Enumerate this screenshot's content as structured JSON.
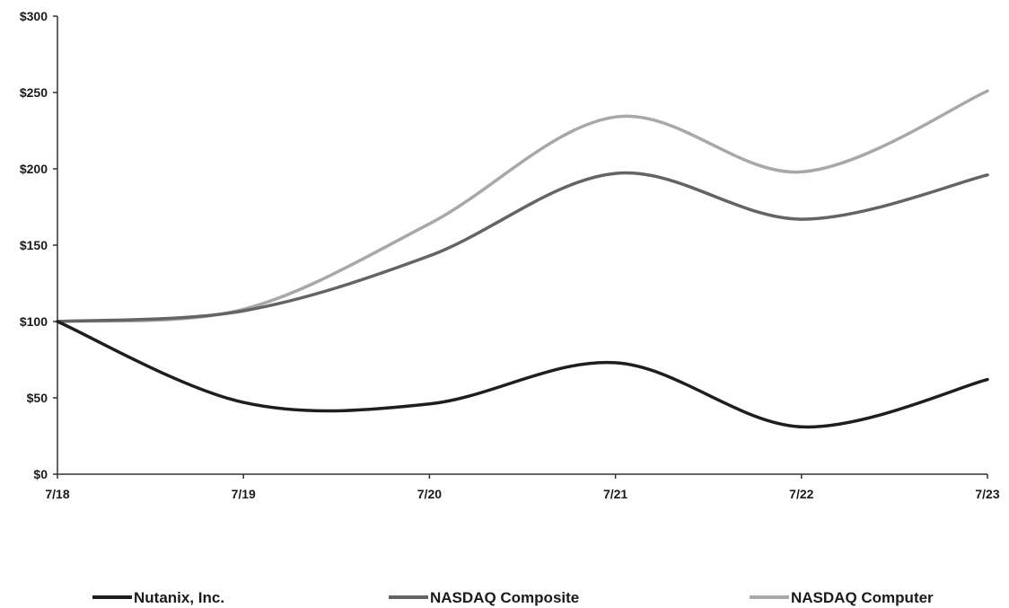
{
  "chart_data": {
    "type": "line",
    "title": "",
    "xlabel": "",
    "ylabel": "",
    "categories": [
      "7/18",
      "7/19",
      "7/20",
      "7/21",
      "7/22",
      "7/23"
    ],
    "y_ticks": [
      "$0",
      "$50",
      "$100",
      "$150",
      "$200",
      "$250",
      "$300"
    ],
    "ylim": [
      0,
      300
    ],
    "grid": false,
    "legend_position": "bottom",
    "series": [
      {
        "name": "Nutanix, Inc.",
        "color": "#1e1e1e",
        "values": [
          100,
          47,
          46,
          73,
          31,
          62
        ]
      },
      {
        "name": "NASDAQ Composite",
        "color": "#646464",
        "values": [
          100,
          107,
          143,
          197,
          167,
          196
        ]
      },
      {
        "name": "NASDAQ Computer",
        "color": "#a8a8a8",
        "values": [
          100,
          108,
          164,
          234,
          198,
          251
        ]
      }
    ]
  }
}
